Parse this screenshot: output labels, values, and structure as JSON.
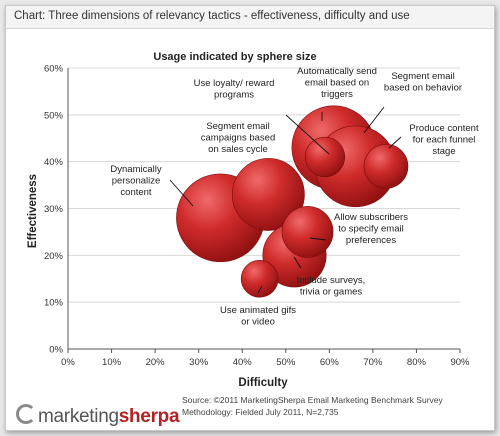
{
  "header": {
    "title": "Chart: Three dimensions of relevancy tactics - effectiveness, difficulty and use"
  },
  "chart_data": {
    "type": "bubble",
    "title": "Usage indicated by sphere size",
    "xlabel": "Difficulty",
    "ylabel": "Effectiveness",
    "xlim": [
      0,
      90
    ],
    "ylim": [
      0,
      60
    ],
    "x_ticks": [
      "0%",
      "10%",
      "20%",
      "30%",
      "40%",
      "50%",
      "60%",
      "70%",
      "80%",
      "90%"
    ],
    "y_ticks": [
      "0%",
      "10%",
      "20%",
      "30%",
      "40%",
      "50%",
      "60%"
    ],
    "bubble_color": "#c62828",
    "points": [
      {
        "label": "Dynamically personalize content",
        "x": 35,
        "y": 28,
        "size": 1.0
      },
      {
        "label": "Segment email campaigns based on sales cycle",
        "x": 46,
        "y": 33,
        "size": 0.82
      },
      {
        "label": "Include surveys, trivia or games",
        "x": 52,
        "y": 20,
        "size": 0.72
      },
      {
        "label": "Use animated gifs or video",
        "x": 44,
        "y": 15,
        "size": 0.42
      },
      {
        "label": "Allow subscribers to specify email preferences",
        "x": 55,
        "y": 25,
        "size": 0.58
      },
      {
        "label": "Segment email based on behavior",
        "x": 66,
        "y": 39,
        "size": 0.92
      },
      {
        "label": "Automatically send email based on triggers",
        "x": 61,
        "y": 43,
        "size": 0.95
      },
      {
        "label": "Use loyalty/ reward programs",
        "x": 59,
        "y": 41,
        "size": 0.45
      },
      {
        "label": "Produce content for each funnel stage",
        "x": 73,
        "y": 39,
        "size": 0.5
      }
    ]
  },
  "footer": {
    "logo_a": "marketing",
    "logo_b": "sherpa",
    "source": "Source: ©2011 MarketingSherpa Email Marketing Benchmark Survey",
    "methodology": "Methodology: Fielded July 2011, N=2,735"
  }
}
